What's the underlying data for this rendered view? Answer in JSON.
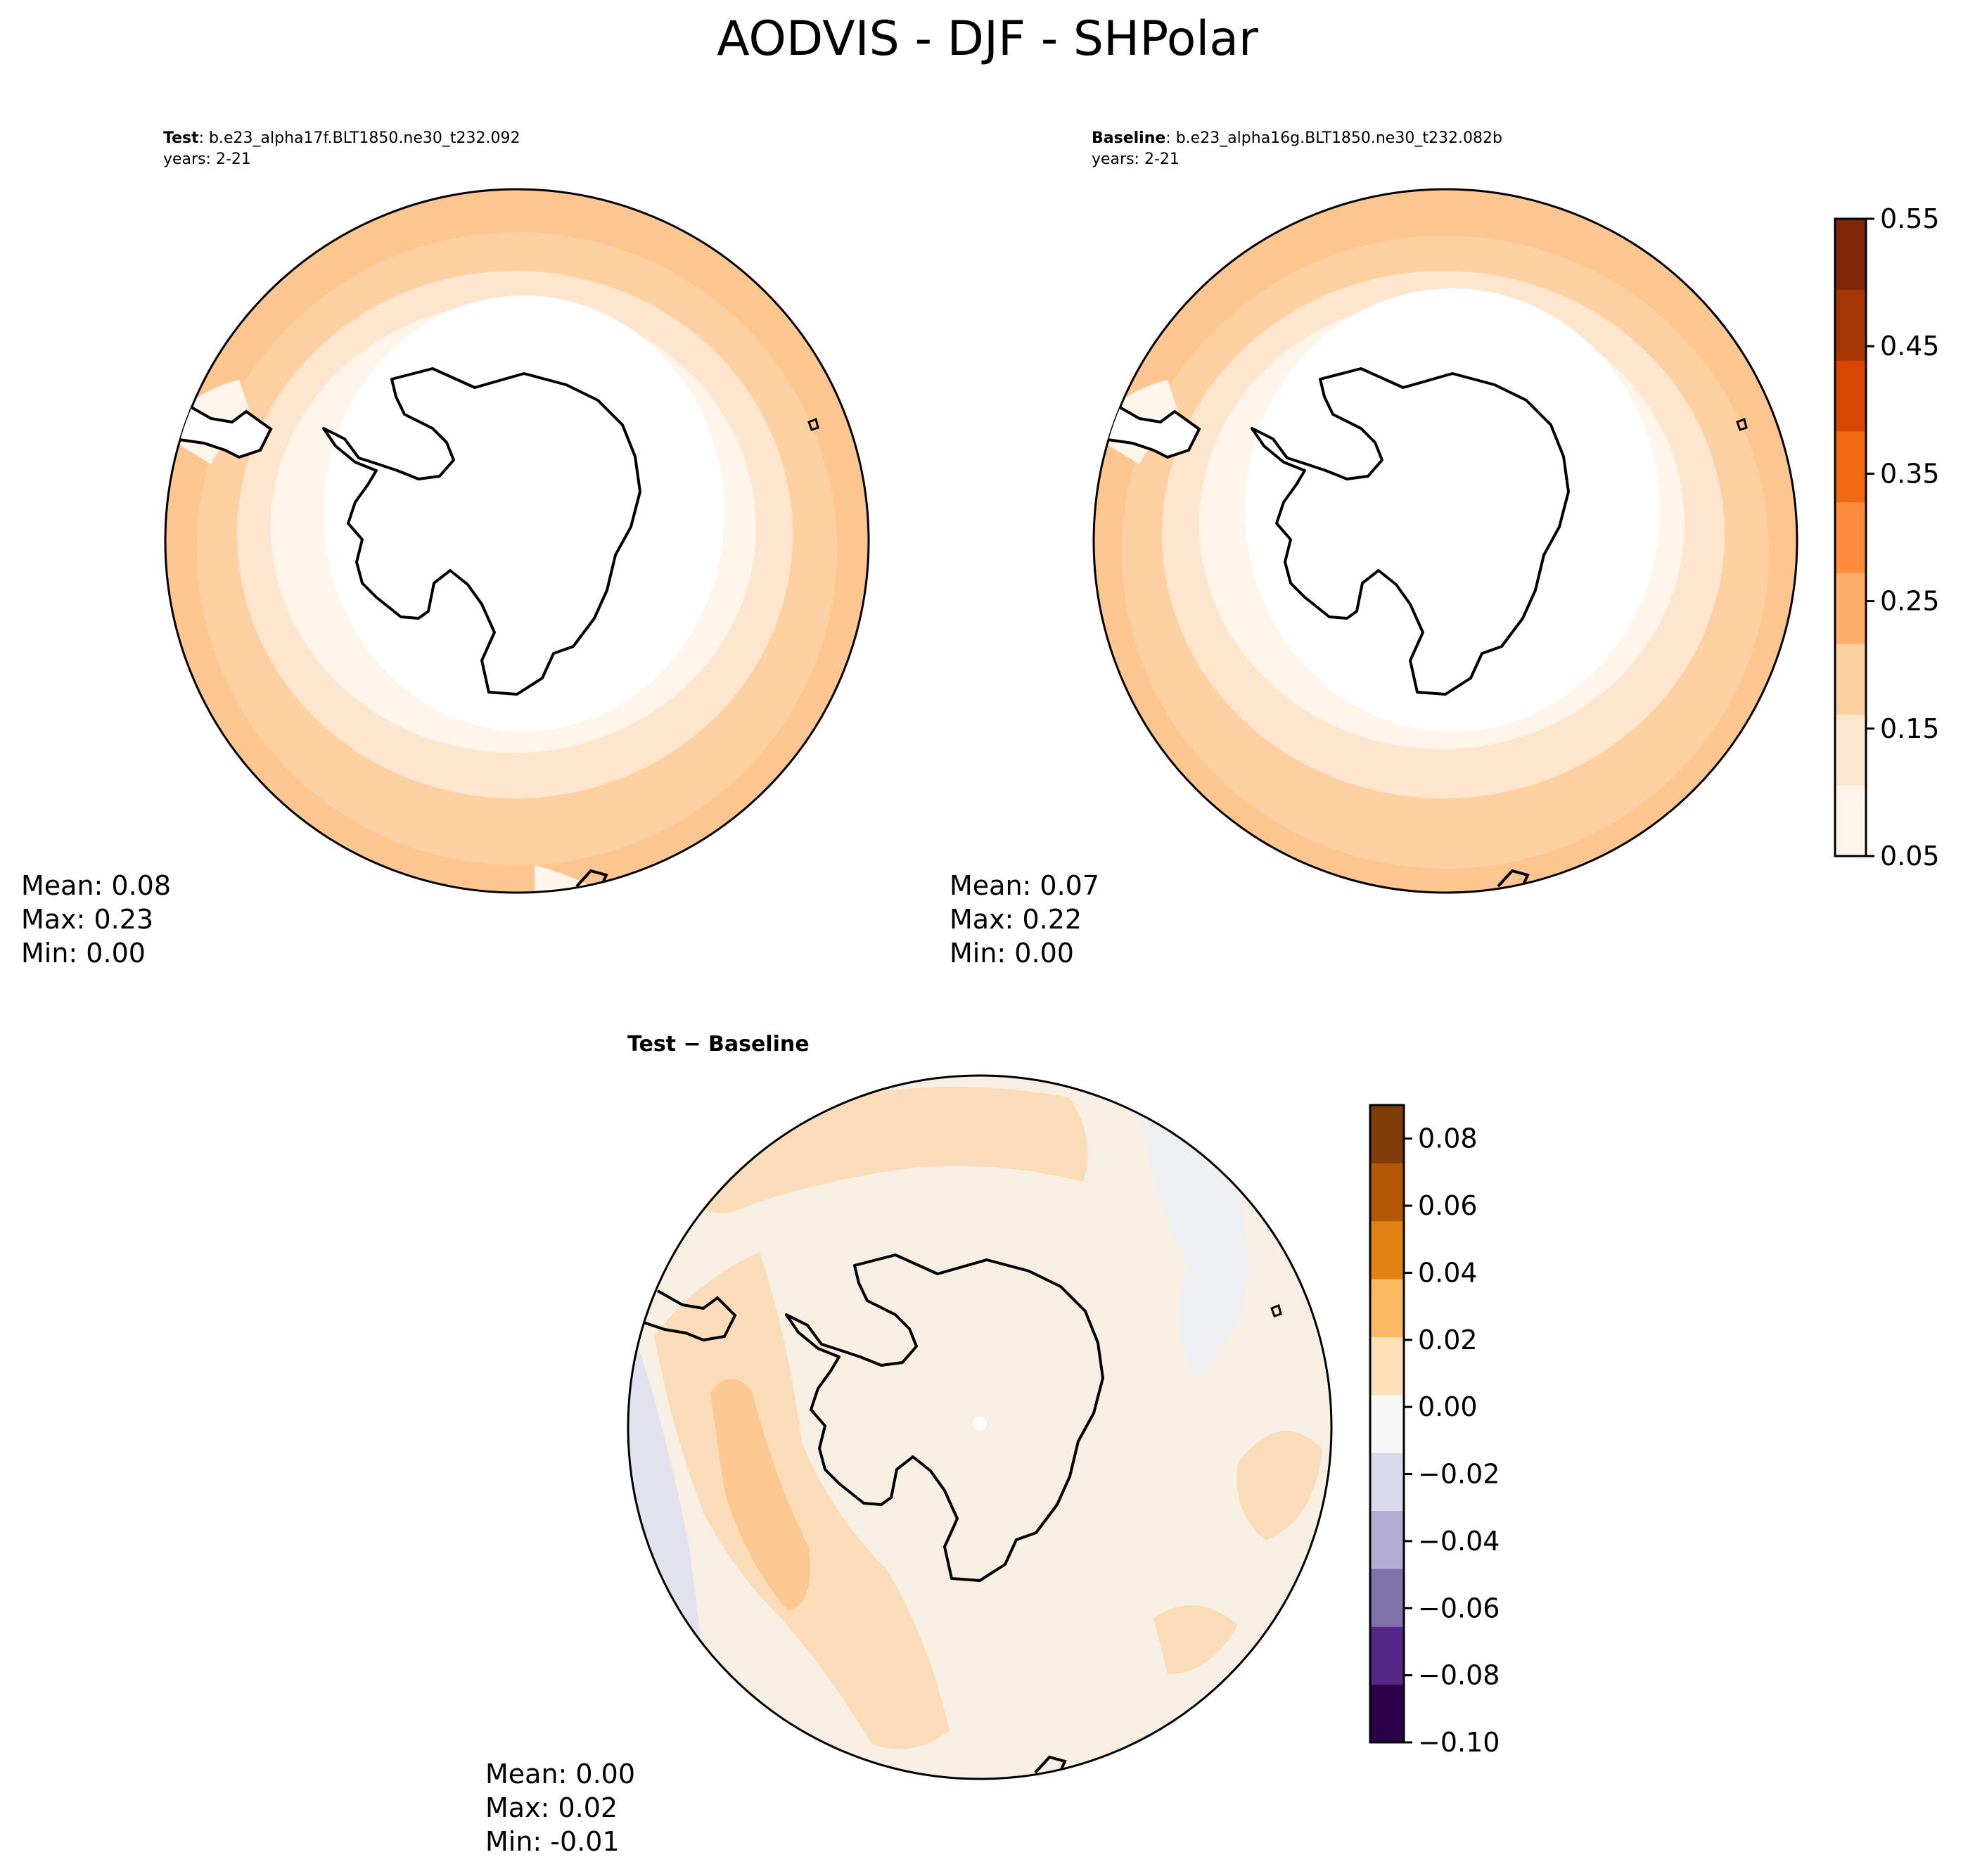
{
  "figure_title": "AODVIS - DJF - SHPolar",
  "panels": {
    "test": {
      "label_bold": "Test",
      "label_rest": ": b.e23_alpha17f.BLT1850.ne30_t232.092",
      "years": "years: 2-21",
      "stats": {
        "mean": "Mean:  0.08",
        "max": "Max:  0.23",
        "min": "Min:  0.00"
      }
    },
    "baseline": {
      "label_bold": "Baseline",
      "label_rest": ": b.e23_alpha16g.BLT1850.ne30_t232.082b",
      "years": "years: 2-21",
      "stats": {
        "mean": "Mean:  0.07",
        "max": "Max:  0.22",
        "min": "Min:  0.00"
      }
    },
    "diff": {
      "label": "Test − Baseline",
      "stats": {
        "mean": "Mean:  0.00",
        "max": "Max:  0.02",
        "min": "Min: -0.01"
      }
    }
  },
  "colors": {
    "aod_levels": [
      "#fff5eb",
      "#fee6ce",
      "#fdd0a2",
      "#fdae6b",
      "#fd8d3c",
      "#f16913",
      "#d94801",
      "#a63603",
      "#7f2704"
    ],
    "diff_levels": [
      "#2d004b",
      "#542788",
      "#8073ac",
      "#b2abd2",
      "#d8daeb",
      "#f7f7f7",
      "#fee0b6",
      "#fdb863",
      "#e08214",
      "#b35806",
      "#7f3b08"
    ],
    "coast": "#000000"
  },
  "chart_data": [
    {
      "type": "heatmap",
      "name": "Test",
      "projection": "south-polar-stereographic",
      "title": "Test : b.e23_alpha17f.BLT1850.ne30_t232.092",
      "subtitle": "years: 2-21",
      "field": "AODVIS",
      "season": "DJF",
      "mean": 0.08,
      "max": 0.23,
      "min": 0.0
    },
    {
      "type": "heatmap",
      "name": "Baseline",
      "projection": "south-polar-stereographic",
      "title": "Baseline : b.e23_alpha16g.BLT1850.ne30_t232.082b",
      "subtitle": "years: 2-21",
      "field": "AODVIS",
      "season": "DJF",
      "mean": 0.07,
      "max": 0.22,
      "min": 0.0
    },
    {
      "type": "heatmap",
      "name": "Test - Baseline",
      "projection": "south-polar-stereographic",
      "title": "Test − Baseline",
      "mean": 0.0,
      "max": 0.02,
      "min": -0.01
    }
  ],
  "colorbars": {
    "aod": {
      "range": [
        0.05,
        0.55
      ],
      "tick_values": [
        0.05,
        0.15,
        0.25,
        0.35,
        0.45,
        0.55
      ],
      "tick_labels": [
        "0.05",
        "0.15",
        "0.25",
        "0.35",
        "0.45",
        "0.55"
      ]
    },
    "diff": {
      "range": [
        -0.1,
        0.09
      ],
      "tick_values": [
        -0.1,
        -0.08,
        -0.06,
        -0.04,
        -0.02,
        0.0,
        0.02,
        0.04,
        0.06,
        0.08
      ],
      "tick_labels": [
        "−0.10",
        "−0.08",
        "−0.06",
        "−0.04",
        "−0.02",
        "0.00",
        "0.02",
        "0.04",
        "0.06",
        "0.08"
      ]
    }
  }
}
